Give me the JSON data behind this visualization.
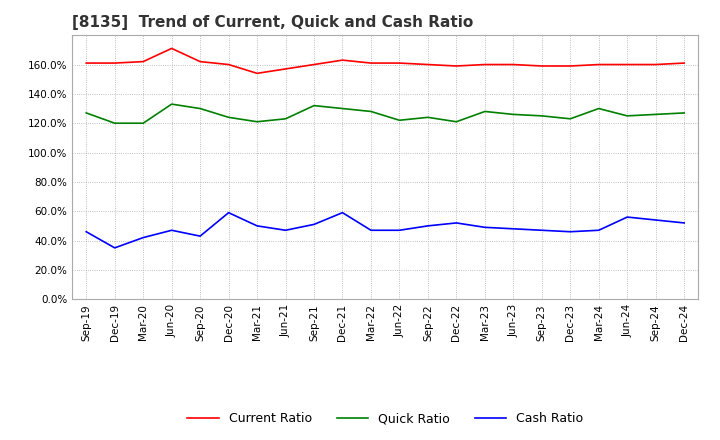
{
  "title": "[8135]  Trend of Current, Quick and Cash Ratio",
  "x_labels": [
    "Sep-19",
    "Dec-19",
    "Mar-20",
    "Jun-20",
    "Sep-20",
    "Dec-20",
    "Mar-21",
    "Jun-21",
    "Sep-21",
    "Dec-21",
    "Mar-22",
    "Jun-22",
    "Sep-22",
    "Dec-22",
    "Mar-23",
    "Jun-23",
    "Sep-23",
    "Dec-23",
    "Mar-24",
    "Jun-24",
    "Sep-24",
    "Dec-24"
  ],
  "current_ratio": [
    161,
    161,
    162,
    171,
    162,
    160,
    154,
    157,
    160,
    163,
    161,
    161,
    160,
    159,
    160,
    160,
    159,
    159,
    160,
    160,
    160,
    161
  ],
  "quick_ratio": [
    127,
    120,
    120,
    133,
    130,
    124,
    121,
    123,
    132,
    130,
    128,
    122,
    124,
    121,
    128,
    126,
    125,
    123,
    130,
    125,
    126,
    127
  ],
  "cash_ratio": [
    46,
    35,
    42,
    47,
    43,
    59,
    50,
    47,
    51,
    59,
    47,
    47,
    50,
    52,
    49,
    48,
    47,
    46,
    47,
    56,
    54,
    52
  ],
  "ylim": [
    0,
    180
  ],
  "yticks": [
    0,
    20,
    40,
    60,
    80,
    100,
    120,
    140,
    160
  ],
  "current_color": "#ff0000",
  "quick_color": "#008000",
  "cash_color": "#0000ff",
  "title_fontsize": 11,
  "tick_fontsize": 7.5,
  "legend_fontsize": 9,
  "bg_color": "#ffffff",
  "grid_color": "#aaaaaa",
  "line_width": 1.2
}
